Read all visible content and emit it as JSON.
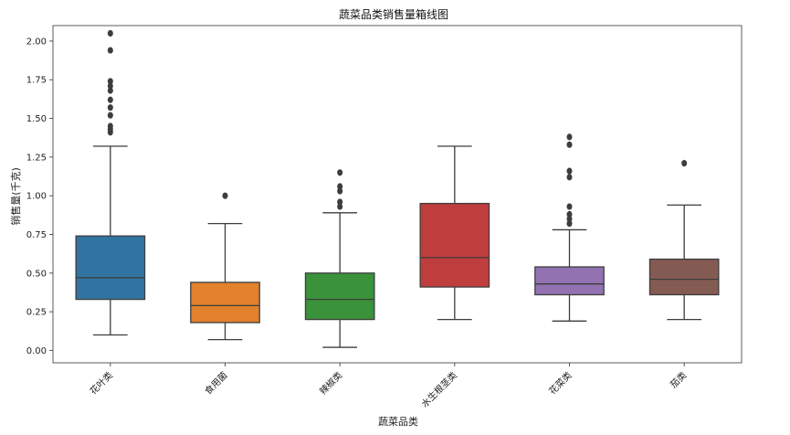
{
  "chart_data": {
    "type": "box",
    "title": "蔬菜品类销售量箱线图",
    "xlabel": "蔬菜品类",
    "ylabel": "销售量(千克)",
    "ylim": [
      -0.08,
      2.1
    ],
    "yticks": [
      0.0,
      0.25,
      0.5,
      0.75,
      1.0,
      1.25,
      1.5,
      1.75,
      2.0
    ],
    "ytick_labels": [
      "0.00",
      "0.25",
      "0.50",
      "0.75",
      "1.00",
      "1.25",
      "1.50",
      "1.75",
      "2.00"
    ],
    "grid": false,
    "categories": [
      "花叶类",
      "食用菌",
      "辣椒类",
      "水生根茎类",
      "花菜类",
      "茄类"
    ],
    "boxes": [
      {
        "category": "花叶类",
        "color": "#3274a1",
        "whisker_low": 0.1,
        "q1": 0.33,
        "median": 0.47,
        "q3": 0.74,
        "whisker_high": 1.32,
        "outliers": [
          1.41,
          1.43,
          1.45,
          1.52,
          1.57,
          1.62,
          1.68,
          1.71,
          1.74,
          1.94,
          2.05
        ]
      },
      {
        "category": "食用菌",
        "color": "#e1812c",
        "whisker_low": 0.07,
        "q1": 0.18,
        "median": 0.29,
        "q3": 0.44,
        "whisker_high": 0.82,
        "outliers": [
          1.0
        ]
      },
      {
        "category": "辣椒类",
        "color": "#3a923a",
        "whisker_low": 0.02,
        "q1": 0.2,
        "median": 0.33,
        "q3": 0.5,
        "whisker_high": 0.89,
        "outliers": [
          0.93,
          0.96,
          1.03,
          1.06,
          1.15
        ]
      },
      {
        "category": "水生根茎类",
        "color": "#c03d3e",
        "whisker_low": 0.2,
        "q1": 0.41,
        "median": 0.6,
        "q3": 0.95,
        "whisker_high": 1.32,
        "outliers": []
      },
      {
        "category": "花菜类",
        "color": "#9372b2",
        "whisker_low": 0.19,
        "q1": 0.36,
        "median": 0.43,
        "q3": 0.54,
        "whisker_high": 0.78,
        "outliers": [
          0.82,
          0.85,
          0.88,
          0.93,
          1.12,
          1.16,
          1.33,
          1.38
        ]
      },
      {
        "category": "茄类",
        "color": "#845b53",
        "whisker_low": 0.2,
        "q1": 0.36,
        "median": 0.46,
        "q3": 0.59,
        "whisker_high": 0.94,
        "outliers": [
          1.21
        ]
      }
    ]
  }
}
